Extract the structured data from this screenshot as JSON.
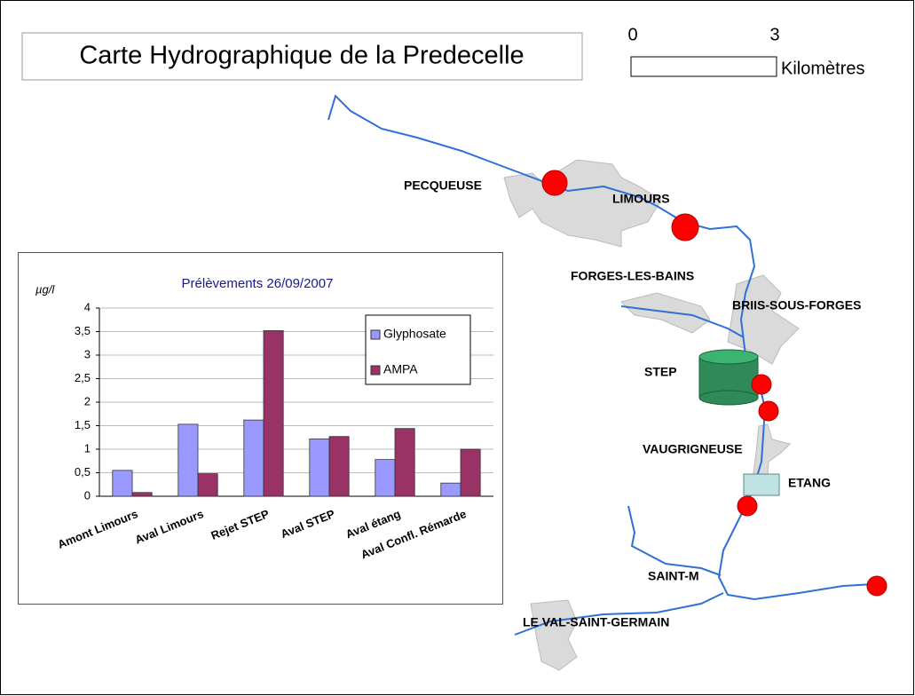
{
  "map": {
    "title": "Carte Hydrographique de la Predecelle",
    "scale": {
      "ticks": [
        0,
        3
      ],
      "unit": "Kilomètres"
    },
    "places": [
      "PECQUEUSE",
      "LIMOURS",
      "FORGES-LES-BAINS",
      "BRIIS-SOUS-FORGES",
      "STEP",
      "VAUGRIGNEUSE",
      "ETANG",
      "SAINT-M",
      "LE VAL-SAINT-GERMAIN"
    ]
  },
  "chart_data": {
    "type": "bar",
    "title": "Prélèvements 26/09/2007",
    "y_label": "µg/l",
    "categories": [
      "Amont Limours",
      "Aval Limours",
      "Rejet STEP",
      "Aval STEP",
      "Aval étang",
      "Aval Confl. Rémarde"
    ],
    "series": [
      {
        "name": "Glyphosate",
        "color": "#9999ff",
        "values": [
          0.55,
          1.53,
          1.62,
          1.22,
          0.78,
          0.28
        ]
      },
      {
        "name": "AMPA",
        "color": "#993366",
        "values": [
          0.08,
          0.48,
          3.52,
          1.27,
          1.44,
          1.0
        ]
      }
    ],
    "ylim": [
      0,
      4
    ],
    "yticks": [
      0,
      {
        "value": 0.5,
        "label": "0,5"
      },
      1,
      {
        "value": 1.5,
        "label": "1,5"
      },
      2,
      {
        "value": 2.5,
        "label": "2,5"
      },
      3,
      {
        "value": 3.5,
        "label": "3,5"
      },
      4
    ],
    "grid": true,
    "legend": "upper-right"
  }
}
